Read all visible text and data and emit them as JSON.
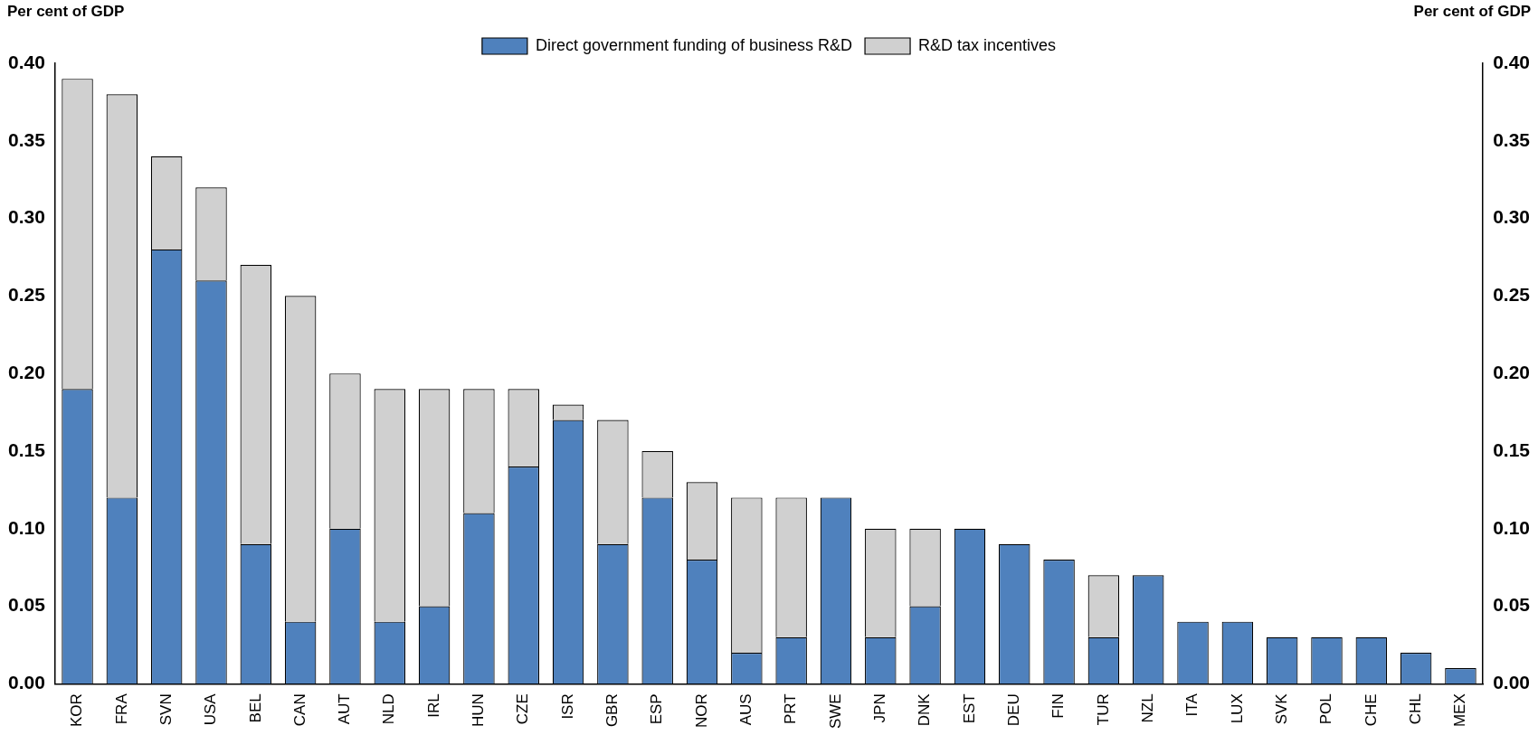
{
  "chart_data": {
    "type": "bar",
    "stacked": true,
    "ylabel": "Per cent of GDP",
    "y2label": "Per cent of GDP",
    "categories": [
      "KOR",
      "FRA",
      "SVN",
      "USA",
      "BEL",
      "CAN",
      "AUT",
      "NLD",
      "IRL",
      "HUN",
      "CZE",
      "ISR",
      "GBR",
      "ESP",
      "NOR",
      "AUS",
      "PRT",
      "SWE",
      "JPN",
      "DNK",
      "EST",
      "DEU",
      "FIN",
      "TUR",
      "NZL",
      "ITA",
      "LUX",
      "SVK",
      "POL",
      "CHE",
      "CHL",
      "MEX"
    ],
    "series": [
      {
        "name": "Direct government funding of business R&D",
        "color": "#4f81bd",
        "values": [
          0.19,
          0.12,
          0.28,
          0.26,
          0.09,
          0.04,
          0.1,
          0.04,
          0.05,
          0.11,
          0.14,
          0.17,
          0.09,
          0.12,
          0.08,
          0.02,
          0.03,
          0.12,
          0.03,
          0.05,
          0.1,
          0.09,
          0.08,
          0.03,
          0.07,
          0.04,
          0.04,
          0.03,
          0.03,
          0.03,
          0.02,
          0.01
        ]
      },
      {
        "name": "R&D tax incentives",
        "color": "#d0d0d0",
        "values": [
          0.2,
          0.26,
          0.06,
          0.06,
          0.18,
          0.21,
          0.1,
          0.15,
          0.14,
          0.08,
          0.05,
          0.01,
          0.08,
          0.03,
          0.05,
          0.1,
          0.09,
          null,
          0.07,
          0.05,
          null,
          null,
          null,
          0.04,
          null,
          null,
          null,
          null,
          null,
          null,
          null,
          null
        ]
      }
    ],
    "ylim": [
      0,
      0.4
    ],
    "yticks": [
      {
        "value": 0,
        "label": "0.00"
      },
      {
        "value": 0.05,
        "label": "0.05"
      },
      {
        "value": 0.1,
        "label": "0.10"
      },
      {
        "value": 0.15,
        "label": "0.15"
      },
      {
        "value": 0.2,
        "label": "0.20"
      },
      {
        "value": 0.25,
        "label": "0.25"
      },
      {
        "value": 0.3,
        "label": "0.30"
      },
      {
        "value": 0.35,
        "label": "0.35"
      },
      {
        "value": 0.4,
        "label": "0.40"
      }
    ],
    "y2lim": [
      0,
      0.4
    ],
    "y2ticks": [
      {
        "value": 0,
        "label": "0.00"
      },
      {
        "value": 0.05,
        "label": "0.05"
      },
      {
        "value": 0.1,
        "label": "0.10"
      },
      {
        "value": 0.15,
        "label": "0.15"
      },
      {
        "value": 0.2,
        "label": "0.20"
      },
      {
        "value": 0.25,
        "label": "0.25"
      },
      {
        "value": 0.3,
        "label": "0.30"
      },
      {
        "value": 0.35,
        "label": "0.35"
      },
      {
        "value": 0.4,
        "label": "0.40"
      }
    ],
    "grid": false,
    "legend": "top"
  }
}
